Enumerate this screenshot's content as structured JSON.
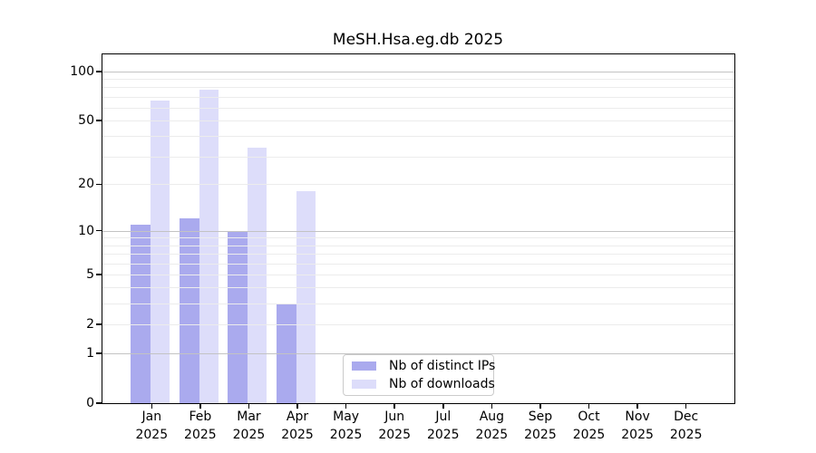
{
  "title": "MeSH.Hsa.eg.db 2025",
  "chart_data": {
    "type": "bar",
    "title": "MeSH.Hsa.eg.db 2025",
    "categories": [
      "Jan",
      "Feb",
      "Mar",
      "Apr",
      "May",
      "Jun",
      "Jul",
      "Aug",
      "Sep",
      "Oct",
      "Nov",
      "Dec"
    ],
    "year_label": "2025",
    "series": [
      {
        "name": "Nb of distinct IPs",
        "color": "#aaaaee",
        "values": [
          11,
          12,
          10,
          3,
          0,
          0,
          0,
          0,
          0,
          0,
          0,
          0
        ]
      },
      {
        "name": "Nb of downloads",
        "color": "#ddddfa",
        "values": [
          66,
          77,
          34,
          18,
          0,
          0,
          0,
          0,
          0,
          0,
          0,
          0
        ]
      }
    ],
    "xlabel": "",
    "ylabel": "",
    "y_scale": "log1p",
    "y_ticks": [
      0,
      1,
      2,
      5,
      10,
      20,
      50,
      100
    ],
    "ylim": [
      0,
      127
    ],
    "grid": "horizontal",
    "legend_position": "inside-bottom-center"
  }
}
